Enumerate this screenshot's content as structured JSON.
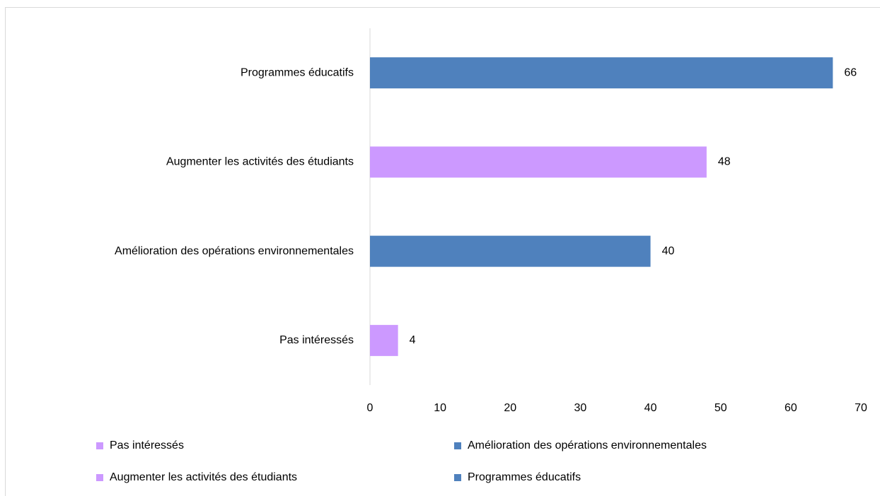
{
  "chart_data": {
    "type": "bar",
    "orientation": "horizontal",
    "categories": [
      "Pas intéressés",
      "Amélioration des opérations environnementales",
      "Augmenter les activités des étudiants",
      "Programmes éducatifs"
    ],
    "values": [
      4,
      40,
      48,
      66
    ],
    "colors": [
      "#cc99ff",
      "#4f81bd",
      "#cc99ff",
      "#4f81bd"
    ],
    "xlim": [
      0,
      70
    ],
    "xticks": [
      0,
      10,
      20,
      30,
      40,
      50,
      60,
      70
    ],
    "grid": false,
    "legend": "bottom"
  }
}
